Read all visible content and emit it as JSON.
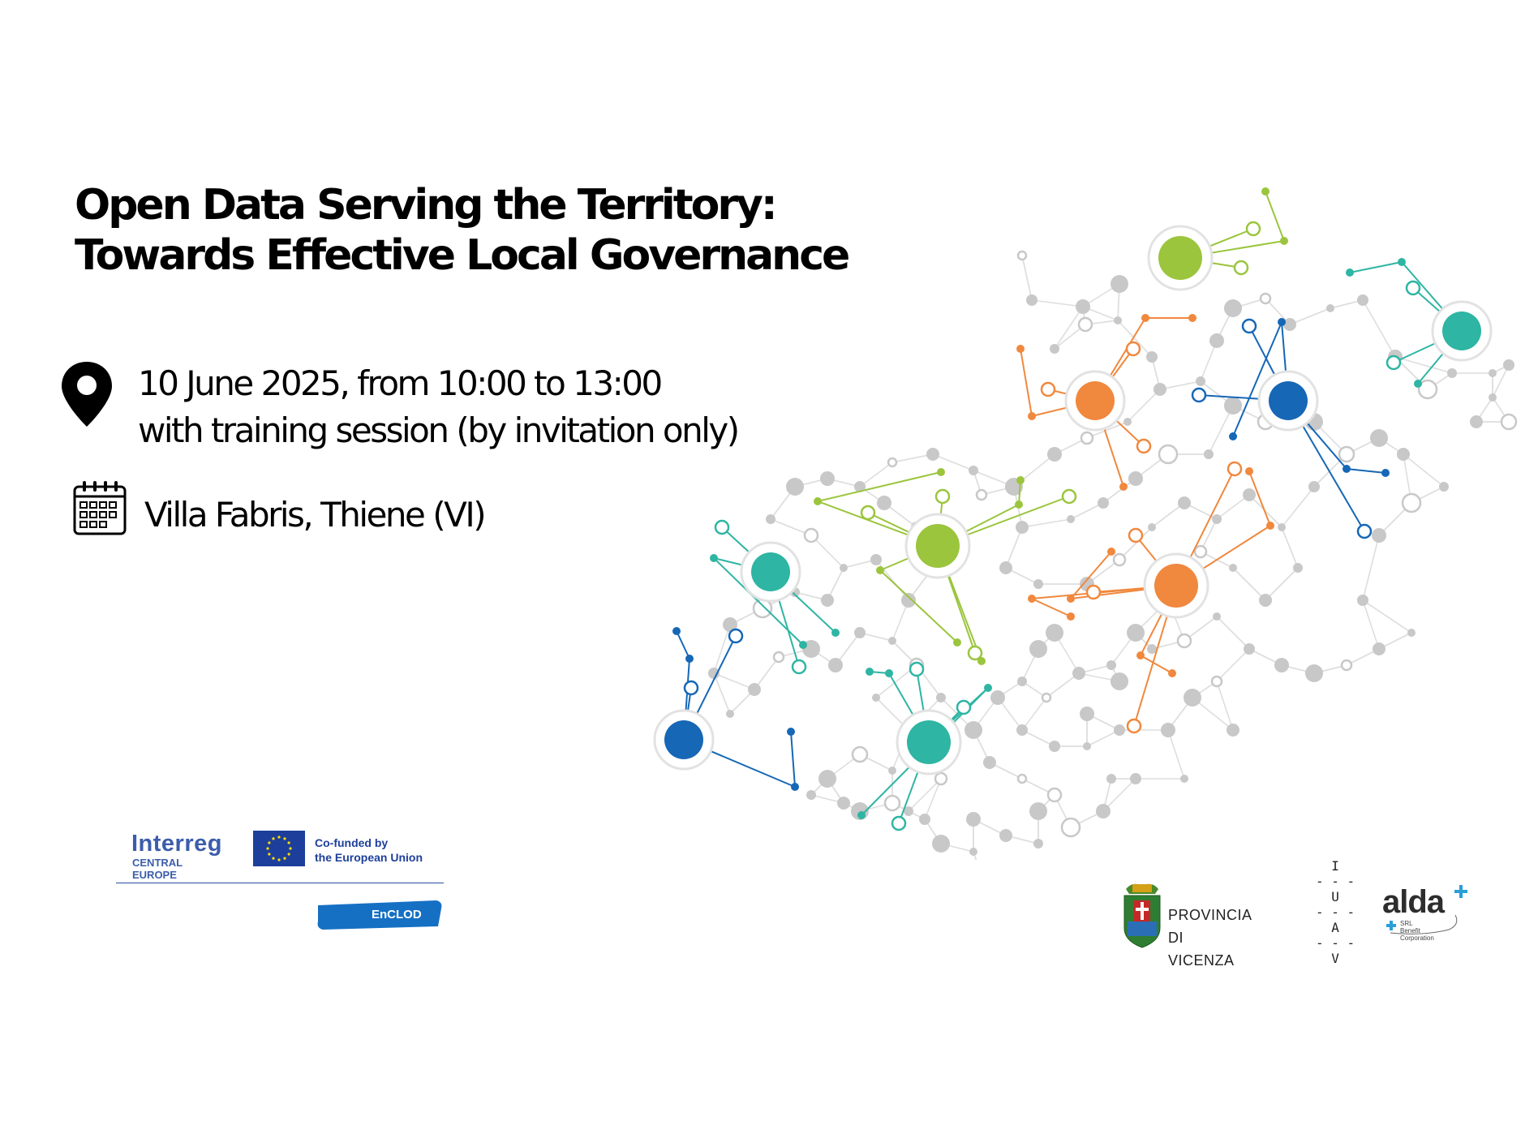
{
  "event": {
    "title_line1": "Open Data Serving the Territory:",
    "title_line2": "Towards Effective Local Governance",
    "date_line1": "10 June 2025, from 10:00 to 13:00",
    "date_line2": "with training session (by invitation only)",
    "venue": "Villa Fabris, Thiene (VI)"
  },
  "icons": {
    "date_icon": "map-pin-icon",
    "venue_icon": "calendar-icon"
  },
  "colors": {
    "green": "#9bc53d",
    "teal": "#2eb5a3",
    "orange": "#f0883e",
    "blue": "#1667b6",
    "grey": "#c8c8c8"
  },
  "logos": {
    "interreg_name": "Interreg",
    "interreg_region": "CENTRAL EUROPE",
    "eu_cofunded_line1": "Co-funded by",
    "eu_cofunded_line2": "the European Union",
    "project_name": "EnCLOD",
    "province_line1": "PROVINCIA",
    "province_line2": "DI VICENZA",
    "iuav_letters": [
      "I",
      "U",
      "A",
      "V"
    ],
    "alda_name": "alda",
    "alda_sub_line1": "SRL Benefit",
    "alda_sub_line2": "Corporation"
  }
}
